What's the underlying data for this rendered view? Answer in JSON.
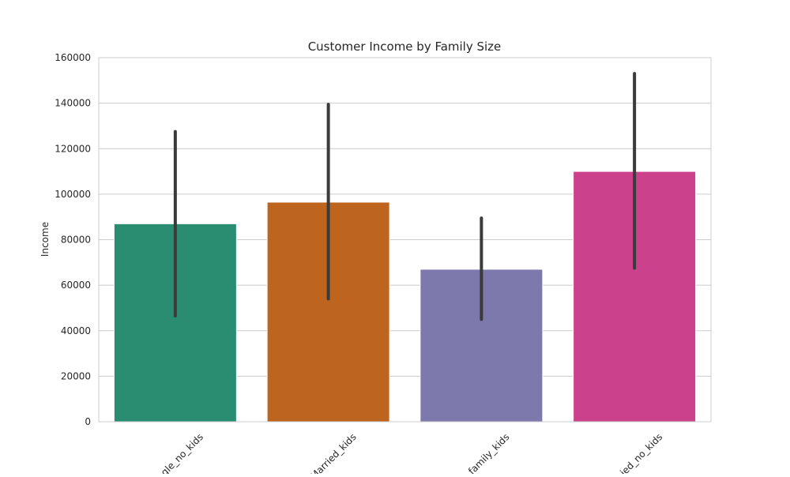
{
  "chart_data": {
    "type": "bar",
    "title": "Customer Income by Family Size",
    "xlabel": "",
    "ylabel": "Income",
    "categories": [
      "single_no_kids",
      "Married_kids",
      "single_family_kids",
      "Married_no_kids"
    ],
    "visible_tick_labels": [
      "gle_no_kids",
      "Married_kids",
      "family_kids",
      "ied_no_kids"
    ],
    "values": [
      87000,
      96500,
      67000,
      110000
    ],
    "error_low": [
      46500,
      54000,
      45000,
      67500
    ],
    "error_high": [
      127500,
      139500,
      89500,
      153000
    ],
    "colors": [
      "#2a8d72",
      "#bd641e",
      "#7d79ad",
      "#cc418b"
    ],
    "error_color": "#3b3b3b",
    "ylim": [
      0,
      160000
    ],
    "yticks": [
      0,
      20000,
      40000,
      60000,
      80000,
      100000,
      120000,
      140000,
      160000
    ],
    "grid": true,
    "legend": "none"
  }
}
